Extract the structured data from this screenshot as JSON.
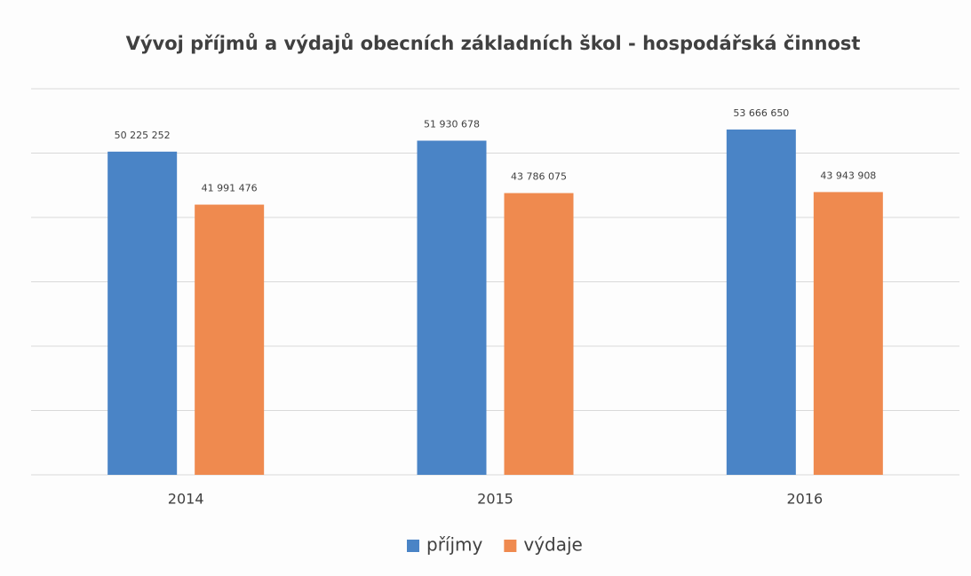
{
  "chart_data": {
    "type": "bar",
    "title": "Vývoj příjmů a výdajů obecních základních škol - hospodářská činnost",
    "categories": [
      "2014",
      "2015",
      "2016"
    ],
    "series": [
      {
        "name": "příjmy",
        "color": "#4a84c6",
        "values": [
          50225252,
          51930678,
          53666650
        ],
        "value_labels": [
          "50 225 252",
          "51 930 678",
          "53 666 650"
        ]
      },
      {
        "name": "výdaje",
        "color": "#ef8a4f",
        "values": [
          41991476,
          43786075,
          43943908
        ],
        "value_labels": [
          "41 991 476",
          "43 786 075",
          "43 943 908"
        ]
      }
    ],
    "ylim": [
      0,
      60000000
    ],
    "yticks": [
      0,
      10000000,
      20000000,
      30000000,
      40000000,
      50000000,
      60000000
    ],
    "grid": true,
    "legend": "bottom"
  }
}
